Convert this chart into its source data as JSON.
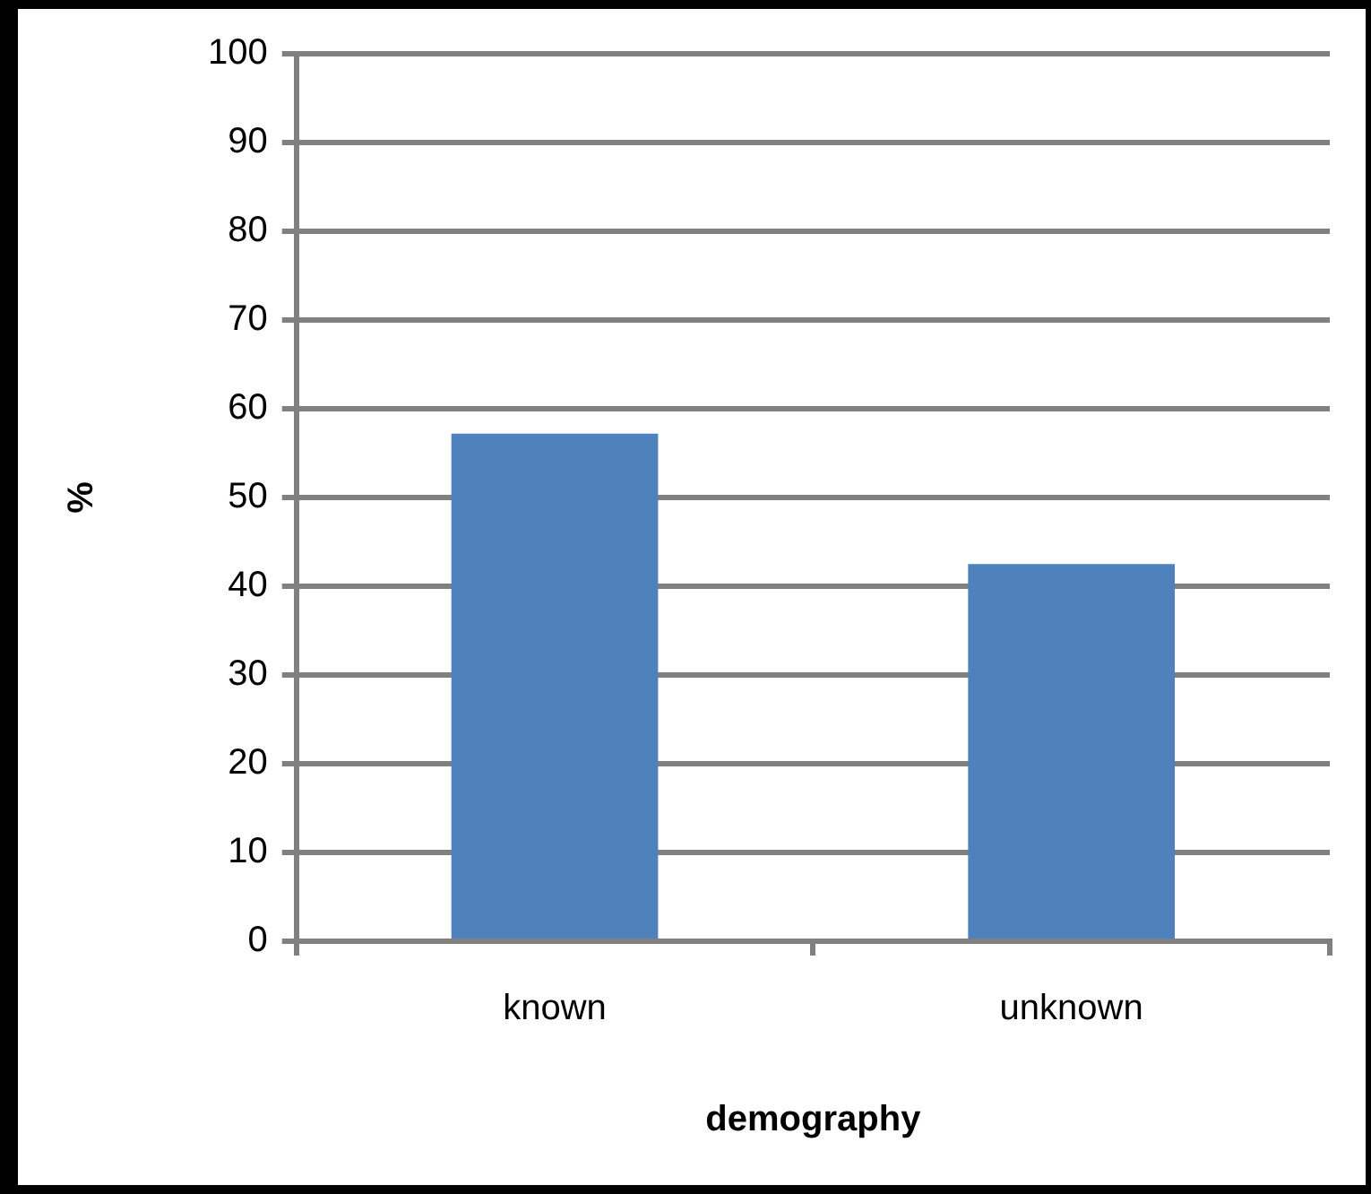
{
  "chart_data": {
    "type": "bar",
    "xlabel": "demography",
    "ylabel": "%",
    "categories": [
      "known",
      "unknown"
    ],
    "series": [
      {
        "color": "#4f81bd",
        "values": [
          57.2,
          42.5
        ]
      }
    ],
    "ylim": [
      0,
      100
    ],
    "yticks": [
      0,
      10,
      20,
      30,
      40,
      50,
      60,
      70,
      80,
      90,
      100
    ],
    "grid": "y",
    "legend": false
  }
}
